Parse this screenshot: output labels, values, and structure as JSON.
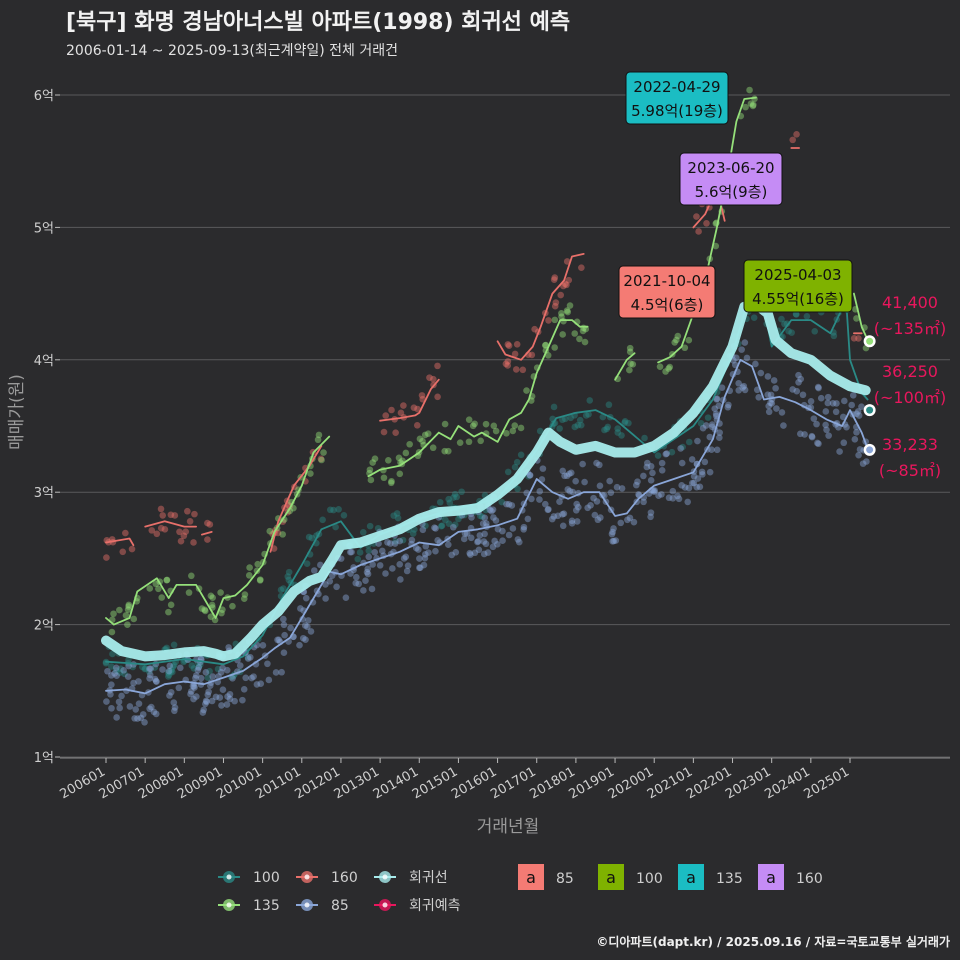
{
  "title": "[북구] 화명 경남아너스빌 아파트(1998) 회귀선 예측",
  "subtitle": "2006-01-14 ~ 2025-09-13(최근계약일) 전체 거래건",
  "credit": "©디아파트(dapt.kr) / 2025.09.16 / 자료=국토교통부 실거래가",
  "colors": {
    "s100": "#2a8a86",
    "s160": "#e8706a",
    "s135": "#95e07a",
    "s85": "#8aa6d8",
    "regression": "#a8ecec",
    "predict": "#e8175d",
    "label85": "#f47b74",
    "label100": "#7fb200",
    "label135": "#1bbdc3",
    "label160": "#c58cf5"
  },
  "chart_data": {
    "type": "line",
    "xlabel": "거래년월",
    "ylabel": "매매가(원)",
    "x_ticks": [
      "200601",
      "200701",
      "200801",
      "200901",
      "201001",
      "201101",
      "201201",
      "201301",
      "201401",
      "201501",
      "201601",
      "201701",
      "201801",
      "201901",
      "202001",
      "202101",
      "202201",
      "202301",
      "202401",
      "202501"
    ],
    "y_ticks": [
      "1억",
      "2억",
      "3억",
      "4억",
      "5억",
      "6억"
    ],
    "ylim": [
      1,
      6.2
    ],
    "grid": true,
    "series": [
      {
        "name": "100",
        "points": [
          [
            2006.0,
            1.72
          ],
          [
            2007.0,
            1.7
          ],
          [
            2008.0,
            1.74
          ],
          [
            2009.0,
            1.7
          ],
          [
            2009.5,
            1.76
          ],
          [
            2010.0,
            1.92
          ],
          [
            2010.5,
            2.2
          ],
          [
            2011.0,
            2.45
          ],
          [
            2011.5,
            2.72
          ],
          [
            2012.0,
            2.78
          ],
          [
            2012.5,
            2.58
          ],
          [
            2013.0,
            2.68
          ],
          [
            2014.0,
            2.8
          ],
          [
            2015.0,
            2.88
          ],
          [
            2016.0,
            2.95
          ],
          [
            2016.7,
            3.2
          ],
          [
            2017.0,
            3.32
          ],
          [
            2017.5,
            3.56
          ],
          [
            2018.0,
            3.6
          ],
          [
            2018.5,
            3.62
          ],
          [
            2019.0,
            3.55
          ],
          [
            2020.0,
            3.3
          ],
          [
            2020.5,
            3.4
          ],
          [
            2021.0,
            3.5
          ],
          [
            2021.5,
            3.7
          ],
          [
            2022.0,
            4.05
          ],
          [
            2022.4,
            4.45
          ],
          [
            2022.8,
            4.4
          ],
          [
            2023.0,
            4.1
          ],
          [
            2023.5,
            4.3
          ],
          [
            2024.0,
            4.3
          ],
          [
            2024.5,
            4.2
          ],
          [
            2024.9,
            4.45
          ],
          [
            2025.0,
            4.0
          ],
          [
            2025.3,
            3.75
          ],
          [
            2025.45,
            3.7
          ]
        ]
      },
      {
        "name": "160",
        "segments": [
          [
            [
              2006.0,
              2.62
            ],
            [
              2006.6,
              2.65
            ],
            [
              2006.7,
              2.6
            ]
          ],
          [
            [
              2007.0,
              2.74
            ],
            [
              2007.5,
              2.78
            ],
            [
              2008.0,
              2.74
            ],
            [
              2008.3,
              2.74
            ]
          ],
          [
            [
              2008.45,
              2.68
            ],
            [
              2008.7,
              2.7
            ]
          ],
          [
            [
              2010.2,
              2.55
            ],
            [
              2010.4,
              2.78
            ],
            [
              2010.8,
              3.05
            ],
            [
              2011.2,
              3.2
            ],
            [
              2011.5,
              3.35
            ]
          ],
          [
            [
              2013.0,
              3.54
            ],
            [
              2013.5,
              3.56
            ],
            [
              2013.9,
              3.58
            ],
            [
              2014.0,
              3.6
            ],
            [
              2014.3,
              3.78
            ],
            [
              2014.5,
              3.85
            ]
          ],
          [
            [
              2016.0,
              4.14
            ],
            [
              2016.2,
              4.04
            ],
            [
              2016.6,
              4.0
            ],
            [
              2016.9,
              4.1
            ],
            [
              2017.1,
              4.25
            ],
            [
              2017.4,
              4.5
            ],
            [
              2017.7,
              4.6
            ],
            [
              2017.9,
              4.78
            ],
            [
              2018.2,
              4.8
            ]
          ],
          [
            [
              2021.0,
              5.0
            ],
            [
              2021.3,
              5.1
            ],
            [
              2021.6,
              5.3
            ],
            [
              2021.8,
              5.05
            ]
          ],
          [
            [
              2023.5,
              5.6
            ],
            [
              2023.7,
              5.6
            ]
          ],
          [
            [
              2025.1,
              4.2
            ],
            [
              2025.3,
              4.2
            ]
          ]
        ]
      },
      {
        "name": "135",
        "segments": [
          [
            [
              2006.0,
              2.05
            ],
            [
              2006.2,
              2.0
            ],
            [
              2006.6,
              2.05
            ],
            [
              2006.8,
              2.25
            ],
            [
              2007.3,
              2.35
            ],
            [
              2007.6,
              2.2
            ],
            [
              2007.8,
              2.3
            ],
            [
              2008.0,
              2.3
            ],
            [
              2008.3,
              2.3
            ],
            [
              2008.5,
              2.2
            ],
            [
              2008.8,
              2.05
            ],
            [
              2009.0,
              2.2
            ],
            [
              2009.3,
              2.22
            ],
            [
              2009.6,
              2.3
            ],
            [
              2010.0,
              2.45
            ],
            [
              2010.3,
              2.7
            ],
            [
              2010.7,
              2.88
            ],
            [
              2011.0,
              3.05
            ],
            [
              2011.3,
              3.3
            ],
            [
              2011.7,
              3.42
            ]
          ],
          [
            [
              2012.7,
              3.12
            ],
            [
              2013.0,
              3.17
            ],
            [
              2013.5,
              3.2
            ],
            [
              2014.0,
              3.3
            ],
            [
              2014.5,
              3.45
            ],
            [
              2014.8,
              3.4
            ],
            [
              2015.0,
              3.5
            ],
            [
              2015.4,
              3.42
            ],
            [
              2015.6,
              3.45
            ],
            [
              2016.0,
              3.38
            ],
            [
              2016.3,
              3.55
            ],
            [
              2016.6,
              3.6
            ],
            [
              2016.8,
              3.7
            ],
            [
              2017.0,
              3.9
            ],
            [
              2017.3,
              4.1
            ],
            [
              2017.6,
              4.3
            ],
            [
              2017.9,
              4.3
            ],
            [
              2018.1,
              4.25
            ],
            [
              2018.3,
              4.25
            ]
          ],
          [
            [
              2019.0,
              3.85
            ],
            [
              2019.3,
              4.0
            ],
            [
              2019.5,
              4.05
            ]
          ],
          [
            [
              2020.1,
              3.98
            ],
            [
              2020.4,
              4.02
            ],
            [
              2020.7,
              4.1
            ],
            [
              2021.0,
              4.35
            ],
            [
              2021.3,
              4.6
            ],
            [
              2021.6,
              5.0
            ],
            [
              2021.9,
              5.45
            ],
            [
              2022.1,
              5.8
            ],
            [
              2022.3,
              5.97
            ],
            [
              2022.6,
              5.98
            ]
          ],
          [
            [
              2025.1,
              4.5
            ],
            [
              2025.3,
              4.25
            ],
            [
              2025.45,
              4.15
            ]
          ]
        ]
      },
      {
        "name": "85",
        "points": [
          [
            2006.0,
            1.5
          ],
          [
            2006.5,
            1.51
          ],
          [
            2007.0,
            1.48
          ],
          [
            2007.5,
            1.55
          ],
          [
            2008.0,
            1.57
          ],
          [
            2008.5,
            1.55
          ],
          [
            2009.0,
            1.6
          ],
          [
            2009.5,
            1.65
          ],
          [
            2010.0,
            1.75
          ],
          [
            2010.3,
            1.82
          ],
          [
            2010.7,
            1.9
          ],
          [
            2011.0,
            2.05
          ],
          [
            2011.4,
            2.25
          ],
          [
            2011.7,
            2.4
          ],
          [
            2012.0,
            2.38
          ],
          [
            2012.5,
            2.45
          ],
          [
            2013.0,
            2.5
          ],
          [
            2013.5,
            2.55
          ],
          [
            2014.0,
            2.62
          ],
          [
            2014.5,
            2.6
          ],
          [
            2015.0,
            2.7
          ],
          [
            2015.5,
            2.72
          ],
          [
            2016.0,
            2.75
          ],
          [
            2016.5,
            2.8
          ],
          [
            2016.8,
            2.98
          ],
          [
            2017.0,
            3.1
          ],
          [
            2017.4,
            3.0
          ],
          [
            2017.8,
            2.95
          ],
          [
            2018.2,
            3.0
          ],
          [
            2018.6,
            3.0
          ],
          [
            2019.0,
            2.82
          ],
          [
            2019.3,
            2.84
          ],
          [
            2019.6,
            2.95
          ],
          [
            2020.0,
            3.05
          ],
          [
            2020.5,
            3.1
          ],
          [
            2021.0,
            3.15
          ],
          [
            2021.5,
            3.4
          ],
          [
            2021.8,
            3.72
          ],
          [
            2022.2,
            4.0
          ],
          [
            2022.5,
            3.95
          ],
          [
            2022.8,
            3.7
          ],
          [
            2023.2,
            3.72
          ],
          [
            2023.6,
            3.68
          ],
          [
            2024.0,
            3.62
          ],
          [
            2024.4,
            3.55
          ],
          [
            2024.8,
            3.5
          ],
          [
            2025.0,
            3.62
          ],
          [
            2025.3,
            3.45
          ],
          [
            2025.45,
            3.33
          ]
        ]
      },
      {
        "name": "회귀선",
        "points": [
          [
            2006.0,
            1.88
          ],
          [
            2006.4,
            1.8
          ],
          [
            2007.0,
            1.76
          ],
          [
            2007.5,
            1.77
          ],
          [
            2008.0,
            1.79
          ],
          [
            2008.5,
            1.8
          ],
          [
            2008.8,
            1.78
          ],
          [
            2009.0,
            1.76
          ],
          [
            2009.3,
            1.78
          ],
          [
            2009.7,
            1.9
          ],
          [
            2010.0,
            2.0
          ],
          [
            2010.4,
            2.1
          ],
          [
            2010.8,
            2.25
          ],
          [
            2011.2,
            2.33
          ],
          [
            2011.5,
            2.36
          ],
          [
            2011.8,
            2.5
          ],
          [
            2012.0,
            2.6
          ],
          [
            2012.5,
            2.62
          ],
          [
            2013.0,
            2.67
          ],
          [
            2013.5,
            2.72
          ],
          [
            2014.0,
            2.8
          ],
          [
            2014.5,
            2.85
          ],
          [
            2015.0,
            2.86
          ],
          [
            2015.5,
            2.88
          ],
          [
            2016.0,
            2.98
          ],
          [
            2016.5,
            3.1
          ],
          [
            2017.0,
            3.3
          ],
          [
            2017.3,
            3.45
          ],
          [
            2017.6,
            3.38
          ],
          [
            2018.0,
            3.32
          ],
          [
            2018.5,
            3.35
          ],
          [
            2019.0,
            3.3
          ],
          [
            2019.5,
            3.3
          ],
          [
            2020.0,
            3.35
          ],
          [
            2020.5,
            3.45
          ],
          [
            2021.0,
            3.6
          ],
          [
            2021.5,
            3.8
          ],
          [
            2022.0,
            4.1
          ],
          [
            2022.3,
            4.4
          ],
          [
            2022.6,
            4.42
          ],
          [
            2022.9,
            4.35
          ],
          [
            2023.1,
            4.15
          ],
          [
            2023.5,
            4.05
          ],
          [
            2024.0,
            4.0
          ],
          [
            2024.5,
            3.88
          ],
          [
            2025.0,
            3.8
          ],
          [
            2025.4,
            3.77
          ]
        ]
      }
    ],
    "predictions": [
      {
        "area": "135",
        "price": "41,400",
        "note": "(~135㎡)",
        "value": 4.14
      },
      {
        "area": "100",
        "price": "36,250",
        "note": "(~100㎡)",
        "value": 3.62
      },
      {
        "area": "85",
        "price": "33,233",
        "note": "(~85㎡)",
        "value": 3.32
      }
    ],
    "annotations": [
      {
        "date": "2022-04-29",
        "text": "5.98억(19층)",
        "area": "135"
      },
      {
        "date": "2023-06-20",
        "text": "5.6억(9층)",
        "area": "160"
      },
      {
        "date": "2021-10-04",
        "text": "4.5억(6층)",
        "area": "85"
      },
      {
        "date": "2025-04-03",
        "text": "4.55억(16층)",
        "area": "100"
      }
    ],
    "legend": {
      "placement": "bottom",
      "lines": [
        "100",
        "160",
        "회귀선",
        "135",
        "85",
        "회귀예측"
      ],
      "label_keys_title": "a",
      "label_keys": [
        "85",
        "100",
        "135",
        "160"
      ]
    }
  }
}
